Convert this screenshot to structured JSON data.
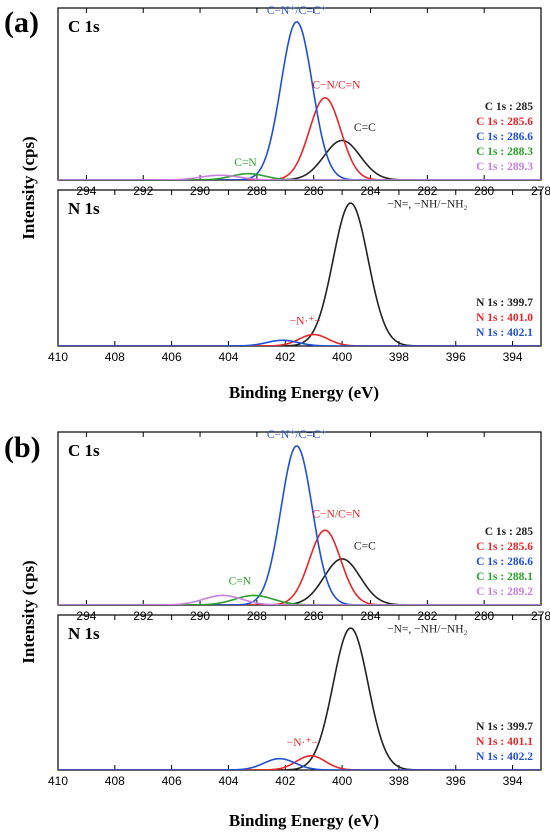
{
  "figure": {
    "ylabel": "Intensity (cps)",
    "colors": {
      "black": "#222222",
      "red": "#e8262a",
      "blue": "#1f4fd8",
      "green": "#2ca02c",
      "violet": "#c77fe0"
    }
  },
  "chart_data": [
    {
      "type": "line",
      "panel": "(a)",
      "subtitle": "C 1s",
      "xlabel": "",
      "x_reversed": true,
      "xlim": [
        295,
        278
      ],
      "ylim": [
        0,
        1.05
      ],
      "xticks": [
        294,
        292,
        290,
        288,
        286,
        284,
        282,
        280,
        278
      ],
      "xtick_labels": [
        "294",
        "292",
        "290",
        "288",
        "286",
        "284",
        "282",
        "280",
        "278"
      ],
      "series": [
        {
          "name": "C 1s : 285",
          "center": 285.0,
          "height": 0.25,
          "fwhm": 1.5,
          "color": "#222222"
        },
        {
          "name": "C 1s : 285.6",
          "center": 285.6,
          "height": 0.52,
          "fwhm": 1.3,
          "color": "#e8262a"
        },
        {
          "name": "C 1s : 286.6",
          "center": 286.6,
          "height": 1.0,
          "fwhm": 1.3,
          "color": "#1f4fd8"
        },
        {
          "name": "C 1s : 288.3",
          "center": 288.3,
          "height": 0.04,
          "fwhm": 1.4,
          "color": "#2ca02c"
        },
        {
          "name": "C 1s : 289.3",
          "center": 289.3,
          "height": 0.03,
          "fwhm": 1.6,
          "color": "#c77fe0"
        }
      ],
      "annotations": [
        {
          "text": "C−N⁺/C=C⁺",
          "x": 286.6,
          "y": 1.05,
          "color": "#1f4fd8"
        },
        {
          "text": "C−N/C=N",
          "x": 285.2,
          "y": 0.58,
          "color": "#e8262a"
        },
        {
          "text": "C=C",
          "x": 284.2,
          "y": 0.31,
          "color": "#222222"
        },
        {
          "text": "C=N",
          "x": 288.4,
          "y": 0.09,
          "color": "#2ca02c"
        }
      ]
    },
    {
      "type": "line",
      "panel": "",
      "subtitle": "N 1s",
      "xlabel": "Binding Energy (eV)",
      "x_reversed": true,
      "xlim": [
        410,
        393
      ],
      "ylim": [
        0,
        1.05
      ],
      "xticks": [
        410,
        408,
        406,
        404,
        402,
        400,
        398,
        396,
        394
      ],
      "xtick_labels": [
        "410",
        "408",
        "406",
        "404",
        "402",
        "400",
        "398",
        "396",
        "394"
      ],
      "series": [
        {
          "name": "N 1s : 399.7",
          "center": 399.7,
          "height": 1.0,
          "fwhm": 1.45,
          "color": "#222222"
        },
        {
          "name": "N 1s : 401.0",
          "center": 401.0,
          "height": 0.08,
          "fwhm": 1.2,
          "color": "#e8262a"
        },
        {
          "name": "N 1s : 402.1",
          "center": 402.1,
          "height": 0.04,
          "fwhm": 1.3,
          "color": "#1f4fd8"
        }
      ],
      "annotations": [
        {
          "text": "−N=, −NH/−NH₂",
          "x": 397.0,
          "y": 0.97,
          "color": "#222222"
        },
        {
          "text": "−N·⁺−",
          "x": 401.3,
          "y": 0.15,
          "color": "#e8262a"
        }
      ]
    },
    {
      "type": "line",
      "panel": "(b)",
      "subtitle": "C 1s",
      "xlabel": "",
      "x_reversed": true,
      "xlim": [
        295,
        278
      ],
      "ylim": [
        0,
        1.05
      ],
      "xticks": [
        294,
        292,
        290,
        288,
        286,
        284,
        282,
        280,
        278
      ],
      "xtick_labels": [
        "294",
        "292",
        "290",
        "288",
        "286",
        "284",
        "282",
        "280",
        "278"
      ],
      "series": [
        {
          "name": "C 1s : 285",
          "center": 285.0,
          "height": 0.29,
          "fwhm": 1.5,
          "color": "#222222"
        },
        {
          "name": "C 1s : 285.6",
          "center": 285.6,
          "height": 0.47,
          "fwhm": 1.3,
          "color": "#e8262a"
        },
        {
          "name": "C 1s : 286.6",
          "center": 286.6,
          "height": 1.0,
          "fwhm": 1.3,
          "color": "#1f4fd8"
        },
        {
          "name": "C 1s : 288.1",
          "center": 288.1,
          "height": 0.06,
          "fwhm": 1.6,
          "color": "#2ca02c"
        },
        {
          "name": "C 1s : 289.2",
          "center": 289.2,
          "height": 0.06,
          "fwhm": 1.6,
          "color": "#c77fe0"
        }
      ],
      "annotations": [
        {
          "text": "C−N⁺/C=C⁺",
          "x": 286.6,
          "y": 1.05,
          "color": "#1f4fd8"
        },
        {
          "text": "C−N/C=N",
          "x": 285.2,
          "y": 0.55,
          "color": "#e8262a"
        },
        {
          "text": "C=C",
          "x": 284.2,
          "y": 0.35,
          "color": "#222222"
        },
        {
          "text": "C=N",
          "x": 288.6,
          "y": 0.13,
          "color": "#2ca02c"
        }
      ]
    },
    {
      "type": "line",
      "panel": "",
      "subtitle": "N 1s",
      "xlabel": "Binding Energy (eV)",
      "x_reversed": true,
      "xlim": [
        410,
        393
      ],
      "ylim": [
        0,
        1.05
      ],
      "xticks": [
        410,
        408,
        406,
        404,
        402,
        400,
        398,
        396,
        394
      ],
      "xtick_labels": [
        "410",
        "408",
        "406",
        "404",
        "402",
        "400",
        "398",
        "396",
        "394"
      ],
      "series": [
        {
          "name": "N 1s : 399.7",
          "center": 399.7,
          "height": 1.0,
          "fwhm": 1.45,
          "color": "#222222"
        },
        {
          "name": "N 1s : 401.1",
          "center": 401.1,
          "height": 0.1,
          "fwhm": 1.2,
          "color": "#e8262a"
        },
        {
          "name": "N 1s : 402.2",
          "center": 402.2,
          "height": 0.08,
          "fwhm": 1.3,
          "color": "#1f4fd8"
        }
      ],
      "annotations": [
        {
          "text": "−N=, −NH/−NH₂",
          "x": 397.0,
          "y": 0.97,
          "color": "#222222"
        },
        {
          "text": "−N·⁺−",
          "x": 401.4,
          "y": 0.17,
          "color": "#e8262a"
        }
      ]
    }
  ]
}
